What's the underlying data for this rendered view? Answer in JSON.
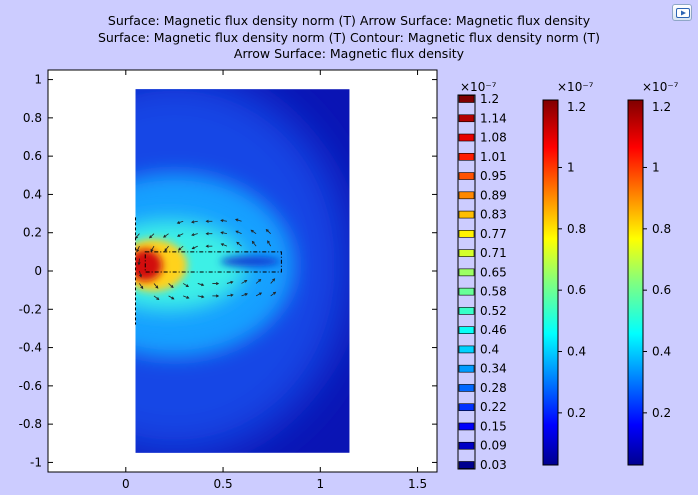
{
  "titles": {
    "line1": "Surface: Magnetic flux density norm (T)  Arrow Surface: Magnetic flux density",
    "line2": "Surface: Magnetic flux density norm (T)  Contour: Magnetic flux density norm (T)",
    "line3": "Arrow Surface: Magnetic flux density"
  },
  "corner_button_icon": "video-camera-icon",
  "colors": {
    "background": "#ccccff",
    "plot_background": "#ffffff"
  },
  "chart_data": {
    "type": "heatmap",
    "xlim": [
      -0.4,
      1.6
    ],
    "ylim": [
      -1.05,
      1.05
    ],
    "x_ticks": [
      "0",
      "0.5",
      "1",
      "1.5"
    ],
    "x_tick_values": [
      0,
      0.5,
      1,
      1.5
    ],
    "y_ticks": [
      "1",
      "0.8",
      "0.6",
      "0.4",
      "0.2",
      "0",
      "-0.2",
      "-0.4",
      "-0.6",
      "-0.8",
      "-1"
    ],
    "y_tick_values": [
      1,
      0.8,
      0.6,
      0.4,
      0.2,
      0,
      -0.2,
      -0.4,
      -0.6,
      -0.8,
      -1
    ],
    "domain": {
      "x": [
        0.05,
        1.15
      ],
      "y": [
        -0.95,
        0.95
      ]
    },
    "conductor": {
      "x": [
        0.1,
        0.8
      ],
      "y": [
        -0.005,
        0.1
      ]
    },
    "grid": false,
    "colorbars": [
      {
        "kind": "discrete",
        "exponent": "×10⁻⁷",
        "labels": [
          "1.2",
          "1.14",
          "1.08",
          "1.01",
          "0.95",
          "0.89",
          "0.83",
          "0.77",
          "0.71",
          "0.65",
          "0.58",
          "0.52",
          "0.46",
          "0.4",
          "0.34",
          "0.28",
          "0.22",
          "0.15",
          "0.09",
          "0.03"
        ]
      },
      {
        "kind": "continuous",
        "exponent": "×10⁻⁷",
        "range": [
          0.03,
          1.22
        ],
        "labels": [
          "1",
          "0.8",
          "0.6",
          "0.4",
          "0.2"
        ],
        "label_values": [
          1,
          0.8,
          0.6,
          0.4,
          0.2
        ]
      },
      {
        "kind": "continuous",
        "exponent": "×10⁻⁷",
        "range": [
          0.03,
          1.22
        ],
        "labels": [
          "1",
          "0.8",
          "0.6",
          "0.4",
          "0.2"
        ],
        "label_values": [
          1,
          0.8,
          0.6,
          0.4,
          0.2
        ]
      }
    ]
  }
}
